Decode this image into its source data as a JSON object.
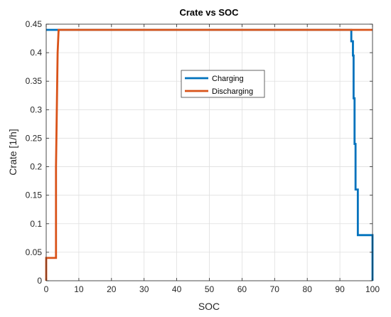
{
  "chart_data": {
    "type": "line",
    "title": "Crate vs SOC",
    "xlabel": "SOC",
    "ylabel": "Crate [1/h]",
    "xlim": [
      0,
      100
    ],
    "ylim": [
      0,
      0.45
    ],
    "xticks": [
      0,
      10,
      20,
      30,
      40,
      50,
      60,
      70,
      80,
      90,
      100
    ],
    "yticks": [
      0,
      0.05,
      0.1,
      0.15,
      0.2,
      0.25,
      0.3,
      0.35,
      0.4,
      0.45
    ],
    "grid": true,
    "legend_position": "upper-center",
    "series": [
      {
        "name": "Charging",
        "color": "#0072BD",
        "x": [
          0,
          93.5,
          93.5,
          94.0,
          94.0,
          94.2,
          94.2,
          94.5,
          94.5,
          94.8,
          94.8,
          95.5,
          95.5,
          100,
          100
        ],
        "y": [
          0.44,
          0.44,
          0.42,
          0.42,
          0.395,
          0.395,
          0.32,
          0.32,
          0.24,
          0.24,
          0.16,
          0.16,
          0.08,
          0.08,
          0
        ]
      },
      {
        "name": "Discharging",
        "color": "#D95319",
        "x": [
          0,
          0,
          3.0,
          3.0,
          3.3,
          3.5,
          3.8,
          100
        ],
        "y": [
          0,
          0.04,
          0.04,
          0.2,
          0.32,
          0.4,
          0.44,
          0.44
        ]
      }
    ]
  }
}
